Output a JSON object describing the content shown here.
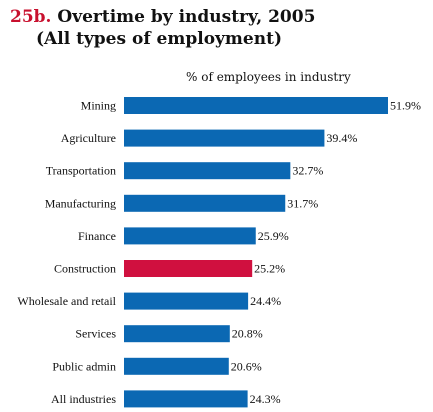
{
  "title": {
    "number": "25b.",
    "line1": "Overtime by industry, 2005",
    "line2": "(All types of employment)"
  },
  "chart_data": {
    "type": "bar",
    "orientation": "horizontal",
    "subtitle": "% of employees in industry",
    "categories": [
      "Mining",
      "Agriculture",
      "Transportation",
      "Manufacturing",
      "Finance",
      "Construction",
      "Wholesale and retail",
      "Services",
      "Public admin",
      "All industries"
    ],
    "values": [
      51.9,
      39.4,
      32.7,
      31.7,
      25.9,
      25.2,
      24.4,
      20.8,
      20.6,
      24.3
    ],
    "value_labels": [
      "51.9%",
      "39.4%",
      "32.7%",
      "31.7%",
      "25.9%",
      "25.2%",
      "24.4%",
      "20.8%",
      "20.6%",
      "24.3%"
    ],
    "highlight": "Construction",
    "xlim": [
      0,
      51.9
    ],
    "colors": {
      "default": "#0b68b3",
      "highlight": "#d0103f"
    },
    "grid": false,
    "legend": "none"
  }
}
